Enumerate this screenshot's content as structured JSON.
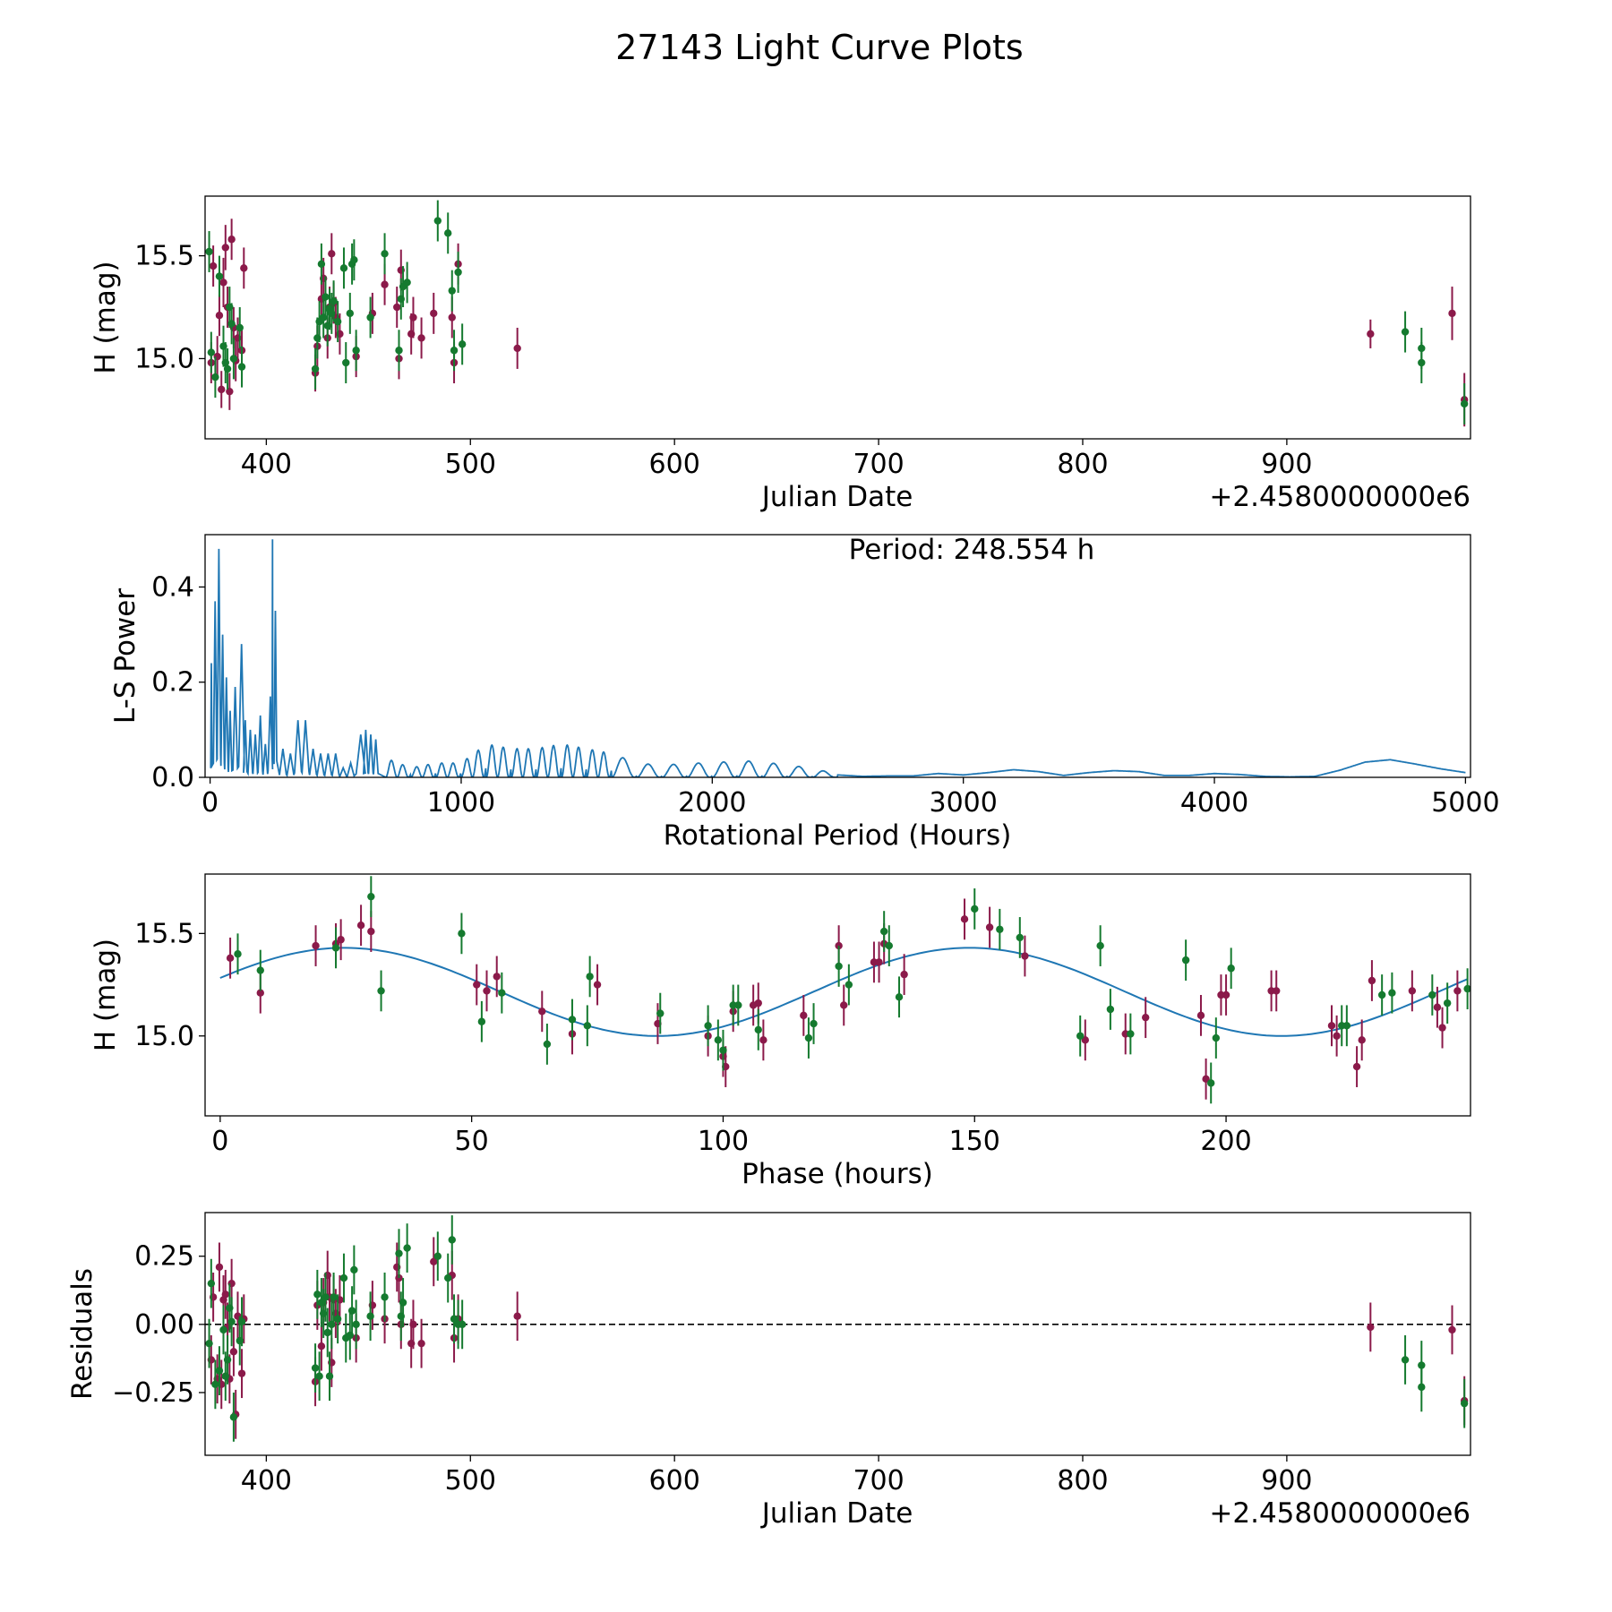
{
  "figure": {
    "title": "27143 Light Curve Plots"
  },
  "colors": {
    "filter_a": "#8b1a4a",
    "filter_b": "#157a2f",
    "model": "#1f77b4",
    "zero_line": "#000000"
  },
  "chart_data": [
    {
      "id": "lightcurve",
      "type": "scatter",
      "xlabel": "Julian Date",
      "ylabel": "H (mag)",
      "offset_label": "+2.4580000000e6",
      "xlim": [
        370,
        990
      ],
      "ylim": [
        14.61,
        15.79
      ],
      "xticks": [
        400,
        500,
        600,
        700,
        800,
        900
      ],
      "yticks": [
        15.0,
        15.5
      ],
      "xtick_labels": [
        "400",
        "500",
        "600",
        "700",
        "800",
        "900"
      ],
      "ytick_labels": [
        "15.0",
        "15.5"
      ],
      "series": [
        {
          "color": "#8b1a4a",
          "x": [
            373,
            374,
            376,
            377,
            378,
            379,
            380,
            381,
            382,
            383,
            384,
            385,
            386,
            388,
            389,
            424,
            425,
            427,
            428,
            430,
            431,
            432,
            433,
            434,
            436,
            444,
            452,
            458,
            464,
            465,
            466,
            471,
            472,
            476,
            482,
            491,
            492,
            494,
            523,
            941,
            981,
            987
          ],
          "y": [
            14.98,
            15.45,
            15.01,
            15.21,
            14.85,
            15.37,
            15.54,
            15.25,
            14.84,
            15.58,
            15.15,
            14.99,
            15.1,
            15.04,
            15.44,
            14.93,
            15.06,
            15.29,
            15.39,
            15.1,
            15.25,
            15.51,
            15.27,
            15.2,
            15.12,
            15.01,
            15.22,
            15.36,
            15.25,
            15.0,
            15.43,
            15.12,
            15.2,
            15.1,
            15.22,
            15.2,
            14.98,
            15.46,
            15.05,
            15.12,
            15.22,
            14.8
          ],
          "err": [
            0.1,
            0.1,
            0.1,
            0.1,
            0.09,
            0.12,
            0.11,
            0.1,
            0.09,
            0.1,
            0.1,
            0.1,
            0.1,
            0.1,
            0.1,
            0.09,
            0.1,
            0.1,
            0.1,
            0.1,
            0.1,
            0.1,
            0.1,
            0.1,
            0.1,
            0.1,
            0.1,
            0.1,
            0.1,
            0.1,
            0.1,
            0.1,
            0.1,
            0.1,
            0.1,
            0.1,
            0.1,
            0.1,
            0.1,
            0.07,
            0.13,
            0.13
          ]
        },
        {
          "color": "#157a2f",
          "x": [
            372,
            373,
            375,
            377,
            379,
            380,
            381,
            382,
            383,
            384,
            387,
            388,
            424,
            425,
            426,
            427,
            428,
            429,
            430,
            431,
            432,
            433,
            435,
            438,
            439,
            441,
            442,
            443,
            444,
            451,
            458,
            465,
            466,
            467,
            469,
            484,
            489,
            491,
            492,
            494,
            496,
            958,
            966,
            966,
            987
          ],
          "y": [
            15.52,
            15.03,
            14.91,
            15.4,
            15.06,
            14.98,
            14.95,
            15.25,
            15.17,
            15.0,
            15.15,
            14.96,
            14.95,
            15.1,
            15.18,
            15.46,
            15.2,
            15.3,
            15.16,
            15.24,
            15.22,
            15.28,
            15.18,
            15.44,
            14.98,
            15.22,
            15.46,
            15.48,
            15.04,
            15.2,
            15.51,
            15.04,
            15.29,
            15.35,
            15.37,
            15.67,
            15.61,
            15.33,
            15.04,
            15.42,
            15.07,
            15.13,
            15.05,
            14.98,
            14.78
          ]
        }
      ]
    },
    {
      "id": "periodogram",
      "type": "line",
      "xlabel": "Rotational Period (Hours)",
      "ylabel": "L-S Power",
      "annotation": "Period: 248.554 h",
      "xlim": [
        -20,
        5020
      ],
      "ylim": [
        0,
        0.51
      ],
      "xticks": [
        0,
        1000,
        2000,
        3000,
        4000,
        5000
      ],
      "yticks": [
        0.0,
        0.2,
        0.4
      ],
      "xtick_labels": [
        "0",
        "1000",
        "2000",
        "3000",
        "4000",
        "5000"
      ],
      "ytick_labels": [
        "0.0",
        "0.2",
        "0.4"
      ],
      "peaks": {
        "x": [
          5,
          20,
          35,
          50,
          65,
          80,
          100,
          125,
          140,
          160,
          180,
          200,
          220,
          240,
          248.5,
          260,
          290,
          320,
          350,
          380,
          410,
          440,
          470,
          500,
          530,
          560,
          600,
          620,
          640,
          660
        ],
        "y": [
          0.24,
          0.37,
          0.48,
          0.3,
          0.21,
          0.14,
          0.19,
          0.28,
          0.12,
          0.1,
          0.09,
          0.13,
          0.07,
          0.17,
          0.5,
          0.35,
          0.06,
          0.05,
          0.12,
          0.12,
          0.06,
          0.05,
          0.05,
          0.05,
          0.02,
          0.03,
          0.09,
          0.1,
          0.09,
          0.08
        ]
      },
      "envelope": {
        "x": [
          700,
          800,
          900,
          1000,
          1100,
          1200,
          1300,
          1400,
          1500,
          1600,
          1700,
          1800,
          1900,
          2000,
          2100,
          2200,
          2300,
          2400,
          2500,
          2600,
          2700,
          2800,
          2900,
          3000,
          3100,
          3200,
          3300,
          3400,
          3500,
          3600,
          3700,
          3800,
          3900,
          4000,
          4100,
          4200,
          4300,
          4400,
          4500,
          4600,
          4700,
          4800,
          4900,
          5000
        ],
        "y": [
          0.04,
          0.02,
          0.03,
          0.03,
          0.07,
          0.06,
          0.06,
          0.07,
          0.06,
          0.05,
          0.03,
          0.025,
          0.03,
          0.03,
          0.035,
          0.033,
          0.025,
          0.02,
          0.005,
          0.002,
          0.003,
          0.003,
          0.008,
          0.005,
          0.01,
          0.016,
          0.012,
          0.004,
          0.01,
          0.014,
          0.012,
          0.004,
          0.004,
          0.008,
          0.006,
          0.002,
          0.001,
          0.002,
          0.015,
          0.032,
          0.037,
          0.028,
          0.018,
          0.01
        ]
      }
    },
    {
      "id": "phased",
      "type": "scatter",
      "xlabel": "Phase (hours)",
      "ylabel": "H (mag)",
      "xlim": [
        -3,
        248.6
      ],
      "ylim": [
        14.61,
        15.79
      ],
      "xticks": [
        0,
        50,
        100,
        150,
        200
      ],
      "yticks": [
        15.0,
        15.5
      ],
      "xtick_labels": [
        "0",
        "50",
        "100",
        "150",
        "200"
      ],
      "ytick_labels": [
        "15.0",
        "15.5"
      ],
      "model": {
        "mean": 15.215,
        "amplitude": 0.215,
        "phase_of_max": 24.7
      },
      "series": [
        {
          "color": "#8b1a4a",
          "x": [
            2,
            8,
            19,
            23,
            24,
            28,
            30,
            51,
            53,
            55,
            64,
            70,
            75,
            87,
            97,
            100,
            100.5,
            102,
            106,
            107,
            108,
            116,
            123,
            124,
            130,
            131,
            132,
            136,
            148,
            153,
            160,
            172,
            180,
            184,
            195,
            196,
            199,
            200,
            209,
            210,
            221,
            222,
            226,
            227,
            229,
            237,
            242,
            243,
            246
          ],
          "y": [
            15.38,
            15.21,
            15.44,
            15.45,
            15.47,
            15.54,
            15.51,
            15.25,
            15.22,
            15.29,
            15.12,
            15.01,
            15.25,
            15.06,
            15.0,
            14.9,
            14.85,
            15.12,
            15.15,
            15.16,
            14.98,
            15.1,
            15.44,
            15.15,
            15.36,
            15.36,
            15.45,
            15.3,
            15.57,
            15.53,
            15.39,
            14.98,
            15.01,
            15.09,
            15.1,
            14.79,
            15.2,
            15.2,
            15.22,
            15.22,
            15.05,
            15.0,
            14.85,
            14.98,
            15.27,
            15.22,
            15.14,
            15.04,
            15.22
          ]
        },
        {
          "color": "#157a2f",
          "x": [
            3.5,
            8,
            23,
            30,
            32,
            48,
            52,
            56,
            65,
            70,
            73,
            73.5,
            87.5,
            97,
            99,
            100,
            102,
            103,
            107,
            117,
            118,
            123,
            125,
            132,
            133,
            135,
            150,
            155,
            159,
            171,
            175,
            177,
            181,
            192,
            197,
            198,
            201,
            223,
            224,
            231,
            233,
            241,
            244,
            248
          ],
          "y": [
            15.4,
            15.32,
            15.43,
            15.68,
            15.22,
            15.5,
            15.07,
            15.21,
            14.96,
            15.08,
            15.05,
            15.29,
            15.11,
            15.05,
            14.98,
            14.93,
            15.15,
            15.15,
            15.03,
            14.99,
            15.06,
            15.34,
            15.25,
            15.51,
            15.44,
            15.19,
            15.62,
            15.52,
            15.48,
            15.0,
            15.44,
            15.13,
            15.01,
            15.37,
            14.77,
            14.99,
            15.33,
            15.05,
            15.05,
            15.2,
            15.21,
            15.2,
            15.16,
            15.23
          ]
        }
      ]
    },
    {
      "id": "residuals",
      "type": "scatter",
      "xlabel": "Julian Date",
      "ylabel": "Residuals",
      "offset_label": "+2.4580000000e6",
      "xlim": [
        370,
        990
      ],
      "ylim": [
        -0.48,
        0.41
      ],
      "xticks": [
        400,
        500,
        600,
        700,
        800,
        900
      ],
      "yticks": [
        0.25,
        0.0,
        -0.25
      ],
      "xtick_labels": [
        "400",
        "500",
        "600",
        "700",
        "800",
        "900"
      ],
      "ytick_labels": [
        "0.25",
        "0.00",
        "−0.25"
      ],
      "zero_line": 0.0,
      "series": [
        {
          "color": "#8b1a4a",
          "x": [
            373,
            374,
            376,
            377,
            378,
            379,
            380,
            381,
            382,
            383,
            384,
            385,
            386,
            388,
            389,
            424,
            425,
            427,
            428,
            430,
            431,
            432,
            433,
            434,
            436,
            444,
            452,
            458,
            464,
            465,
            466,
            471,
            472,
            476,
            482,
            491,
            492,
            494,
            523,
            941,
            981,
            987
          ],
          "y": [
            -0.13,
            0.1,
            -0.2,
            0.21,
            -0.22,
            0.09,
            0.11,
            -0.01,
            -0.2,
            0.15,
            -0.1,
            -0.33,
            0.03,
            -0.18,
            0.02,
            -0.21,
            0.07,
            -0.08,
            0.08,
            0.18,
            0.1,
            -0.14,
            0.09,
            0.04,
            0.09,
            -0.05,
            0.07,
            0.02,
            0.21,
            0.17,
            0.0,
            -0.07,
            0.0,
            -0.07,
            0.23,
            0.18,
            -0.05,
            0.02,
            0.03,
            -0.01,
            -0.02,
            -0.28
          ]
        },
        {
          "color": "#157a2f",
          "x": [
            372,
            373,
            375,
            377,
            379,
            380,
            381,
            382,
            383,
            384,
            387,
            388,
            424,
            425,
            426,
            427,
            428,
            429,
            430,
            431,
            432,
            433,
            435,
            438,
            439,
            441,
            442,
            443,
            444,
            451,
            458,
            465,
            466,
            467,
            469,
            484,
            489,
            491,
            492,
            494,
            496,
            958,
            966,
            966,
            987
          ],
          "y": [
            -0.07,
            0.15,
            -0.22,
            -0.17,
            -0.02,
            -0.19,
            -0.13,
            0.06,
            0.01,
            -0.34,
            -0.06,
            0.01,
            -0.16,
            0.11,
            -0.19,
            0.08,
            0.04,
            0.1,
            -0.03,
            -0.19,
            0.0,
            0.1,
            0.02,
            0.17,
            -0.05,
            -0.04,
            0.05,
            0.2,
            0.0,
            0.03,
            0.1,
            0.26,
            0.03,
            0.08,
            0.28,
            0.25,
            0.17,
            0.31,
            0.02,
            0.0,
            0.0,
            -0.13,
            -0.15,
            -0.23,
            -0.29
          ]
        }
      ]
    }
  ]
}
